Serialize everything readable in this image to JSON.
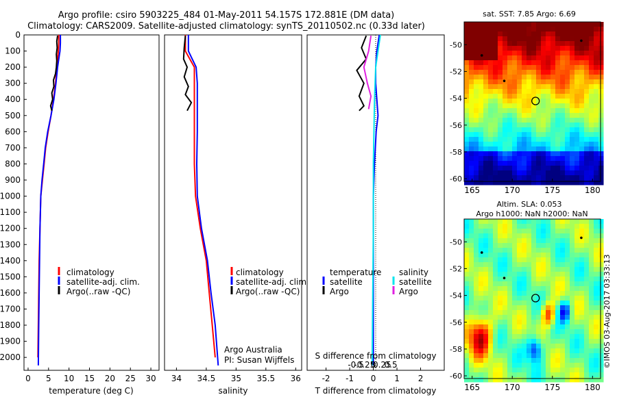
{
  "header": {
    "title_line1": "Argo profile: csiro 5903225_484 01-May-2011 54.157S 172.881E (DM data)",
    "title_line2": "Climatology: CARS2009. Satellite-adjusted climatology: synTS_20110502.nc (0.33d later)"
  },
  "depth_ticks": [
    "0",
    "100",
    "200",
    "300",
    "400",
    "500",
    "600",
    "700",
    "800",
    "900",
    "1000",
    "1100",
    "1200",
    "1300",
    "1400",
    "1500",
    "1600",
    "1700",
    "1800",
    "1900",
    "2000"
  ],
  "colors": {
    "climatology": "#ff0000",
    "satellite": "#0000ff",
    "argo": "#000000",
    "salinity_satellite": "#00e5ee",
    "salinity_argo": "#e020e0"
  },
  "chart_data": [
    {
      "type": "line",
      "id": "temperature",
      "xlabel": "temperature (deg C)",
      "ylabel": "",
      "x_ticks": [
        "0",
        "5",
        "10",
        "15",
        "20",
        "25",
        "30"
      ],
      "xlim": [
        -1,
        32
      ],
      "ylim": [
        2080,
        0
      ],
      "legend": [
        "climatology",
        "satellite-adj. clim.",
        "Argo(..raw -QC)"
      ],
      "legend_position": "lower-center",
      "series": [
        {
          "name": "climatology",
          "color": "#ff0000",
          "points": [
            [
              7.5,
              0
            ],
            [
              7.5,
              50
            ],
            [
              7.4,
              100
            ],
            [
              7.2,
              150
            ],
            [
              7,
              200
            ],
            [
              6.7,
              300
            ],
            [
              6.2,
              400
            ],
            [
              5.6,
              500
            ],
            [
              4.9,
              600
            ],
            [
              4.3,
              700
            ],
            [
              3.9,
              800
            ],
            [
              3.5,
              900
            ],
            [
              3.1,
              1000
            ],
            [
              2.9,
              1200
            ],
            [
              2.7,
              1400
            ],
            [
              2.6,
              1600
            ],
            [
              2.5,
              1800
            ],
            [
              2.4,
              2000
            ]
          ]
        },
        {
          "name": "satellite-adj. clim.",
          "color": "#0000ff",
          "points": [
            [
              7.9,
              0
            ],
            [
              7.9,
              50
            ],
            [
              7.8,
              100
            ],
            [
              7.5,
              150
            ],
            [
              7.2,
              200
            ],
            [
              6.8,
              300
            ],
            [
              6.3,
              400
            ],
            [
              5.6,
              500
            ],
            [
              4.8,
              600
            ],
            [
              4.2,
              700
            ],
            [
              3.8,
              800
            ],
            [
              3.4,
              900
            ],
            [
              3.1,
              1000
            ],
            [
              2.9,
              1200
            ],
            [
              2.8,
              1400
            ],
            [
              2.7,
              1600
            ],
            [
              2.6,
              1800
            ],
            [
              2.5,
              2050
            ]
          ]
        },
        {
          "name": "Argo(..raw -QC)",
          "color": "#000000",
          "points": [
            [
              7.2,
              5
            ],
            [
              7.0,
              40
            ],
            [
              7.1,
              80
            ],
            [
              6.9,
              120
            ],
            [
              7.0,
              160
            ],
            [
              6.9,
              200
            ],
            [
              6.7,
              240
            ],
            [
              6.2,
              280
            ],
            [
              6.3,
              320
            ],
            [
              5.8,
              360
            ],
            [
              6.0,
              400
            ],
            [
              5.5,
              440
            ],
            [
              5.8,
              470
            ]
          ]
        }
      ]
    },
    {
      "type": "line",
      "id": "salinity",
      "xlabel": "salinity",
      "ylabel": "",
      "x_ticks": [
        "34",
        "34.5",
        "35",
        "35.5",
        "36"
      ],
      "xlim": [
        33.8,
        36.1
      ],
      "ylim": [
        2080,
        0
      ],
      "legend": [
        "climatology",
        "satellite-adj. clim.",
        "Argo(..raw -QC)"
      ],
      "legend_position": "lower-right",
      "annotation": [
        "Argo Australia",
        "PI: Susan Wijffels"
      ],
      "series": [
        {
          "name": "climatology",
          "color": "#ff0000",
          "points": [
            [
              34.15,
              0
            ],
            [
              34.15,
              100
            ],
            [
              34.3,
              200
            ],
            [
              34.3,
              300
            ],
            [
              34.3,
              400
            ],
            [
              34.3,
              600
            ],
            [
              34.3,
              800
            ],
            [
              34.32,
              1000
            ],
            [
              34.4,
              1200
            ],
            [
              34.5,
              1400
            ],
            [
              34.55,
              1600
            ],
            [
              34.6,
              1800
            ],
            [
              34.65,
              2000
            ]
          ]
        },
        {
          "name": "satellite-adj. clim.",
          "color": "#0000ff",
          "points": [
            [
              34.2,
              0
            ],
            [
              34.2,
              100
            ],
            [
              34.33,
              200
            ],
            [
              34.35,
              300
            ],
            [
              34.35,
              400
            ],
            [
              34.35,
              600
            ],
            [
              34.34,
              800
            ],
            [
              34.35,
              1000
            ],
            [
              34.42,
              1200
            ],
            [
              34.52,
              1400
            ],
            [
              34.58,
              1600
            ],
            [
              34.65,
              1800
            ],
            [
              34.7,
              2050
            ]
          ]
        },
        {
          "name": "Argo(..raw -QC)",
          "color": "#000000",
          "points": [
            [
              34.15,
              5
            ],
            [
              34.13,
              80
            ],
            [
              34.12,
              150
            ],
            [
              34.18,
              200
            ],
            [
              34.13,
              260
            ],
            [
              34.2,
              320
            ],
            [
              34.15,
              370
            ],
            [
              34.25,
              420
            ],
            [
              34.18,
              470
            ]
          ]
        }
      ]
    },
    {
      "type": "line",
      "id": "difference",
      "xlabel": "T difference from climatology",
      "x_ticks": [
        "-2",
        "-1",
        "0",
        "1",
        "2"
      ],
      "xlim": [
        -2.8,
        3.0
      ],
      "xlabel_top": "S difference from climatology",
      "x_ticks_top": [
        "-0.5",
        "-0.25",
        "0",
        "0.25",
        "0.5"
      ],
      "ylim": [
        2080,
        0
      ],
      "legend_temperature_title": "temperature",
      "legend_salinity_title": "salinity",
      "legend_temperature": [
        "satellite",
        "Argo"
      ],
      "legend_salinity": [
        "satellite",
        "Argo"
      ],
      "series": [
        {
          "name": "T satellite",
          "color": "#0000ff",
          "points": [
            [
              0.25,
              0
            ],
            [
              0.15,
              100
            ],
            [
              0.1,
              200
            ],
            [
              0.1,
              300
            ],
            [
              0.15,
              400
            ],
            [
              0.2,
              500
            ],
            [
              0.12,
              600
            ],
            [
              0.05,
              800
            ],
            [
              0.0,
              1000
            ],
            [
              0.0,
              1500
            ],
            [
              0.0,
              2050
            ]
          ]
        },
        {
          "name": "T Argo",
          "color": "#000000",
          "points": [
            [
              -0.3,
              5
            ],
            [
              -0.5,
              80
            ],
            [
              -0.3,
              150
            ],
            [
              -0.7,
              220
            ],
            [
              -0.4,
              300
            ],
            [
              -0.6,
              380
            ],
            [
              -0.4,
              440
            ],
            [
              -0.6,
              470
            ]
          ]
        },
        {
          "name": "S satellite",
          "color": "#00e5ee",
          "points": [
            [
              0.3,
              0
            ],
            [
              0.2,
              100
            ],
            [
              0.1,
              200
            ],
            [
              0.05,
              400
            ],
            [
              0.0,
              800
            ],
            [
              0.0,
              1200
            ],
            [
              -0.05,
              2050
            ]
          ]
        },
        {
          "name": "S Argo",
          "color": "#e020e0",
          "points": [
            [
              -0.1,
              5
            ],
            [
              -0.2,
              100
            ],
            [
              -0.4,
              200
            ],
            [
              -0.25,
              300
            ],
            [
              -0.1,
              380
            ],
            [
              -0.2,
              460
            ]
          ]
        }
      ]
    },
    {
      "type": "heatmap",
      "id": "sst-map",
      "title": "sat. SST: 7.85 Argo: 6.69",
      "x_ticks": [
        "165",
        "170",
        "175",
        "180"
      ],
      "y_ticks": [
        "-50",
        "-52",
        "-54",
        "-56",
        "-58",
        "-60"
      ],
      "xlim": [
        164,
        181
      ],
      "ylim": [
        -60.2,
        -48.3
      ],
      "marker": {
        "lon": 172.9,
        "lat": -54.2
      },
      "points": [
        [
          166.2,
          -50.8
        ],
        [
          169,
          -52.7
        ],
        [
          178.6,
          -49.7
        ]
      ]
    },
    {
      "type": "heatmap",
      "id": "sla-map",
      "title_line1": "Altim. SLA: 0.053",
      "title_line2": "Argo h1000: NaN h2000: NaN",
      "x_ticks": [
        "165",
        "170",
        "175",
        "180"
      ],
      "y_ticks": [
        "-50",
        "-52",
        "-54",
        "-56",
        "-58",
        "-60"
      ],
      "xlim": [
        164,
        181
      ],
      "ylim": [
        -60.2,
        -48.3
      ],
      "marker": {
        "lon": 172.9,
        "lat": -54.2
      },
      "points": [
        [
          166.2,
          -50.8
        ],
        [
          169,
          -52.7
        ],
        [
          178.6,
          -49.7
        ]
      ],
      "side_label": "©IMOS 03-Aug-2017 03:33:13"
    }
  ]
}
